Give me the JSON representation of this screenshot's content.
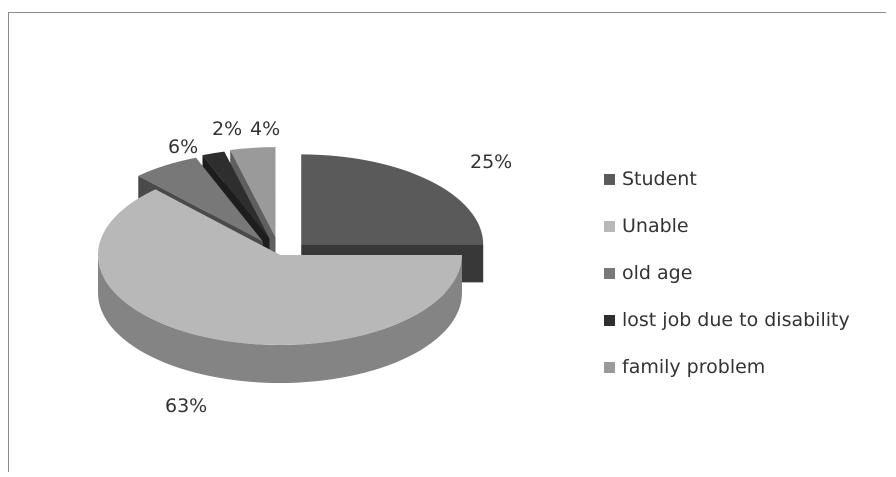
{
  "chart_data": {
    "type": "pie",
    "title": "",
    "categories": [
      "Student",
      "Unable",
      "old age",
      "lost job due to disability",
      "family problem"
    ],
    "values": [
      25,
      63,
      6,
      2,
      4
    ],
    "data_labels": [
      "25%",
      "63%",
      "6%",
      "2%",
      "4%"
    ],
    "colors": [
      "#5a5a5a",
      "#b8b8b8",
      "#787878",
      "#2e2e2e",
      "#9a9a9a"
    ],
    "legend_position": "right",
    "style": "3d-exploded"
  }
}
